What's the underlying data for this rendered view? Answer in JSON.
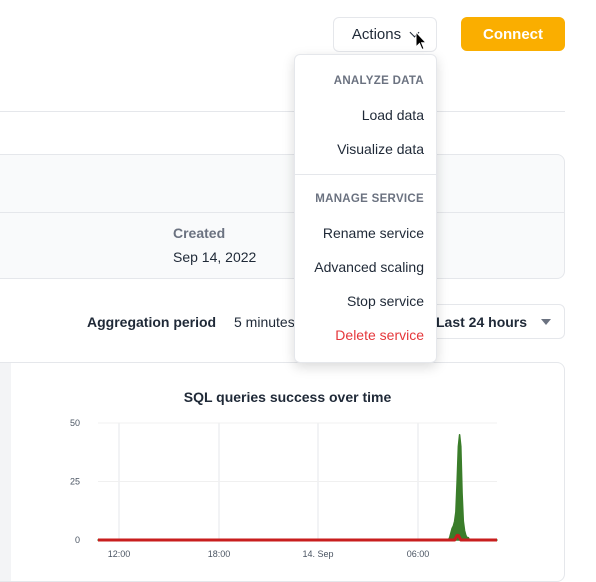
{
  "header": {
    "actions_label": "Actions",
    "connect_label": "Connect"
  },
  "actions_menu": {
    "section_analyze": "ANALYZE DATA",
    "load_data": "Load data",
    "visualize_data": "Visualize data",
    "section_manage": "MANAGE SERVICE",
    "rename_service": "Rename service",
    "advanced_scaling": "Advanced scaling",
    "stop_service": "Stop service",
    "delete_service": "Delete service",
    "danger_color": "#e5373b"
  },
  "info": {
    "created_label": "Created",
    "created_value": "Sep 14, 2022"
  },
  "controls": {
    "aggregation_label": "Aggregation period",
    "aggregation_value": "5 minutes",
    "time_range_value": "Last 24 hours"
  },
  "colors": {
    "accent": "#faae00",
    "success_series": "#3a7d2a",
    "error_series": "#c81e1e"
  },
  "chart_data": {
    "type": "area",
    "title": "SQL queries success over time",
    "ylim": [
      0,
      50
    ],
    "y_ticks": [
      "0",
      "25",
      "50"
    ],
    "x_ticks": [
      "12:00",
      "18:00",
      "14. Sep",
      "06:00"
    ],
    "grid": true,
    "series": [
      {
        "values": [
          0,
          0,
          0,
          0,
          0,
          0,
          0,
          0,
          0,
          0,
          0,
          0,
          0,
          0,
          0,
          0,
          0,
          0,
          0,
          0,
          0,
          0,
          0,
          0,
          0,
          0,
          0,
          0,
          0,
          0,
          0,
          0,
          0,
          0,
          0,
          0,
          0,
          0,
          0,
          0,
          0,
          0,
          0,
          0,
          0,
          0,
          0,
          0,
          0,
          0,
          0,
          0,
          0,
          0,
          0,
          0,
          0,
          0,
          0,
          0,
          0,
          0,
          0,
          0,
          0,
          0,
          0,
          0,
          0,
          0,
          0,
          0,
          0,
          0,
          0,
          0,
          0,
          0,
          0,
          0,
          0,
          0,
          0,
          0,
          0,
          0,
          0,
          0,
          0,
          0,
          0,
          0,
          0,
          0,
          0,
          0,
          0,
          0,
          0,
          0,
          0,
          0,
          0,
          0,
          0,
          0,
          0,
          0,
          0,
          0,
          0,
          0,
          0,
          0,
          0,
          0,
          0,
          0,
          0,
          0,
          0,
          0,
          0,
          0,
          0,
          0,
          0,
          0,
          0,
          0,
          0,
          0,
          0,
          0,
          0,
          0,
          0,
          0,
          0,
          0,
          0,
          0,
          0,
          0,
          0,
          0,
          0,
          0,
          0,
          0,
          0,
          0,
          0,
          0,
          0,
          0,
          0,
          0,
          0,
          0,
          0,
          0,
          0,
          0,
          0,
          0,
          0,
          0,
          0,
          0,
          0,
          0,
          0,
          0,
          0,
          0,
          0,
          0,
          0,
          0,
          0,
          0,
          0,
          0,
          0,
          0,
          0,
          0,
          0,
          0,
          0,
          0,
          0,
          0,
          0,
          0,
          0,
          0,
          0,
          0,
          0,
          0,
          0,
          0,
          0,
          0,
          0,
          0,
          0,
          0,
          0,
          0,
          0,
          0,
          0,
          0,
          0,
          0,
          0,
          0,
          0,
          0,
          0,
          0,
          0,
          0,
          0,
          0,
          0,
          0,
          0,
          0,
          0,
          0,
          0,
          0,
          0,
          0,
          0,
          0,
          0,
          0,
          0,
          0,
          0,
          0,
          0,
          0,
          0,
          0,
          0,
          0,
          0,
          0,
          0,
          0,
          0,
          0,
          0,
          0,
          0,
          0,
          0,
          0,
          0,
          0,
          0,
          0,
          0,
          0,
          0,
          0,
          0,
          0,
          0,
          0,
          0,
          0,
          0,
          0,
          0,
          0,
          1,
          3,
          5,
          6,
          8,
          12,
          25,
          40,
          45,
          40,
          20,
          8,
          4,
          2,
          1,
          1,
          0,
          0,
          0,
          0,
          0,
          0,
          0,
          0,
          0,
          0,
          0,
          0,
          0,
          0,
          0,
          0,
          0,
          0,
          0,
          0,
          0,
          0,
          0
        ]
      },
      {
        "values": [
          0,
          0,
          0,
          0,
          0,
          0,
          0,
          0,
          0,
          0,
          0,
          0,
          0,
          0,
          0,
          0,
          0,
          0,
          0,
          0,
          0,
          0,
          0,
          0,
          0,
          0,
          0,
          0,
          0,
          0,
          0,
          0,
          0,
          0,
          0,
          0,
          0,
          0,
          0,
          0,
          0,
          0,
          0,
          0,
          0,
          0,
          0,
          0,
          0,
          0,
          0,
          0,
          0,
          0,
          0,
          0,
          0,
          0,
          0,
          0,
          0,
          0,
          0,
          0,
          0,
          0,
          0,
          0,
          0,
          0,
          0,
          0,
          0,
          0,
          0,
          0,
          0,
          0,
          0,
          0,
          0,
          0,
          0,
          0,
          0,
          0,
          0,
          0,
          0,
          0,
          0,
          0,
          0,
          0,
          0,
          0,
          0,
          0,
          0,
          0,
          0,
          0,
          0,
          0,
          0,
          0,
          0,
          0,
          0,
          0,
          0,
          0,
          0,
          0,
          0,
          0,
          0,
          0,
          0,
          0,
          0,
          0,
          0,
          0,
          0,
          0,
          0,
          0,
          0,
          0,
          0,
          0,
          0,
          0,
          0,
          0,
          0,
          0,
          0,
          0,
          0,
          0,
          0,
          0,
          0,
          0,
          0,
          0,
          0,
          0,
          0,
          0,
          0,
          0,
          0,
          0,
          0,
          0,
          0,
          0,
          0,
          0,
          0,
          0,
          0,
          0,
          0,
          0,
          0,
          0,
          0,
          0,
          0,
          0,
          0,
          0,
          0,
          0,
          0,
          0,
          0,
          0,
          0,
          0,
          0,
          0,
          0,
          0,
          0,
          0,
          0,
          0,
          0,
          0,
          0,
          0,
          0,
          0,
          0,
          0,
          0,
          0,
          0,
          0,
          0,
          0,
          0,
          0,
          0,
          0,
          0,
          0,
          0,
          0,
          0,
          0,
          0,
          0,
          0,
          0,
          0,
          0,
          0,
          0,
          0,
          0,
          0,
          0,
          0,
          0,
          0,
          0,
          0,
          0,
          0,
          0,
          0,
          0,
          0,
          0,
          0,
          0,
          0,
          0,
          0,
          0,
          0,
          0,
          0,
          0,
          0,
          0,
          0,
          0,
          0,
          0,
          0,
          0,
          0,
          0,
          0,
          0,
          0,
          0,
          0,
          0,
          0,
          0,
          0,
          0,
          0,
          0,
          0,
          0,
          0,
          0,
          0,
          0,
          0,
          0,
          0,
          0,
          0,
          0,
          0,
          0,
          0,
          1,
          2,
          2,
          1,
          0,
          0,
          0,
          0,
          0,
          0,
          0,
          0,
          0,
          0,
          0,
          0,
          0,
          0,
          0,
          0,
          0,
          0,
          0,
          0,
          0,
          0,
          0,
          0,
          0,
          0,
          0,
          0,
          0,
          0
        ]
      }
    ]
  }
}
